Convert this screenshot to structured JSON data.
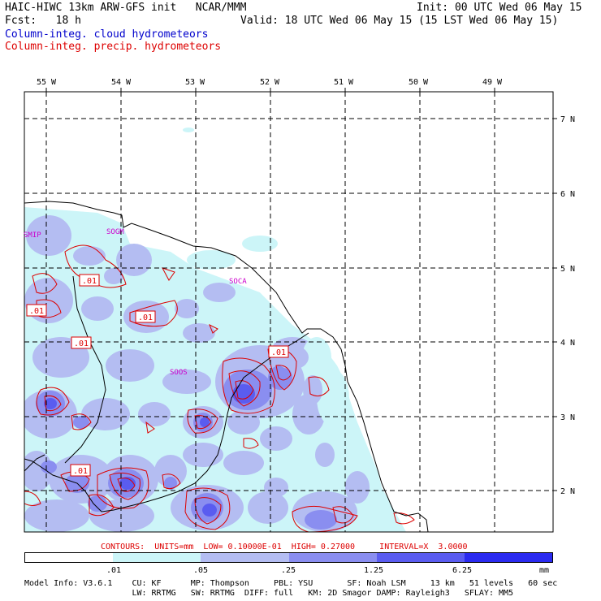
{
  "header": {
    "title_line1": "HAIC-HIWC 13km ARW-GFS init   NCAR/MMM",
    "fcst_line": "Fcst:   18 h",
    "init": "Init: 00 UTC Wed 06 May 15",
    "valid": "Valid: 18 UTC Wed 06 May 15 (15 LST Wed 06 May 15)",
    "field_cloud": "Column-integ. cloud hydrometeors",
    "field_precip": "Column-integ. precip. hydrometeors",
    "cloud_color": "#0000cc",
    "precip_color": "#dd0000"
  },
  "map": {
    "lon_labels": [
      "55 W",
      "54 W",
      "53 W",
      "52 W",
      "51 W",
      "50 W",
      "49 W"
    ],
    "lat_labels": [
      "7 N",
      "6 N",
      "5 N",
      "4 N",
      "3 N",
      "2 N"
    ],
    "stations": [
      "SMIP",
      "SOGM",
      "SOCA",
      "SOOS"
    ],
    "contour_labels": [
      ".01",
      ".01",
      ".01",
      ".01",
      ".01",
      ".01"
    ],
    "station_color": "#cc00cc"
  },
  "contours_line": "CONTOURS:  UNITS=mm  LOW= 0.10000E-01  HIGH= 0.27000     INTERVAL=X  3.0000",
  "colorbar": {
    "ticks": [
      ".01",
      ".05",
      ".25",
      "1.25",
      "6.25"
    ],
    "units": "mm",
    "colors": [
      "#ffffff",
      "#ccf5f8",
      "#b4bdf2",
      "#8a8ef0",
      "#5a5cf0",
      "#2a2af0"
    ]
  },
  "footer": {
    "line1": "Model Info: V3.6.1    CU: KF      MP: Thompson     PBL: YSU       SF: Noah LSM     13 km   51 levels   60 sec",
    "line2": "                      LW: RRTMG   SW: RRTMG  DIFF: full   KM: 2D Smagor DAMP: Rayleigh3   SFLAY: MM5"
  }
}
